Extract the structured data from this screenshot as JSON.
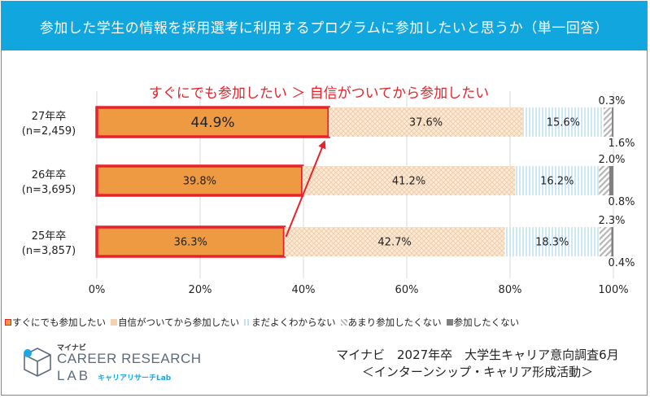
{
  "title": "参加した学生の情報を採用選考に利用するプログラムに参加したいと思うか（単一回答）",
  "annotation": "すぐにでも参加したい ＞ 自信がついてから参加したい",
  "colors": {
    "title_bg": "#12a6df",
    "accent_red": "#e8222a",
    "series": [
      "#ee9a43",
      "#f7dfc7",
      "#cfe9f6",
      "#d9d9d9",
      "#808080"
    ]
  },
  "legend": [
    "すぐにでも参加したい",
    "自信がついてから参加したい",
    "まだよくわからない",
    "あまり参加したくない",
    "参加したくない"
  ],
  "logo": {
    "kana": "マイナビ",
    "line1": "CAREER RESEARCH",
    "line2": "LAB",
    "sub": "キャリアリサーチLab"
  },
  "source": {
    "line1": "マイナビ　2027年卒　大学生キャリア意向調査6月",
    "line2": "＜インターンシップ・キャリア形成活動＞"
  },
  "chart_data": {
    "type": "bar",
    "orientation": "horizontal",
    "stacked": true,
    "categories": [
      [
        "27年卒",
        "(n=2,459)"
      ],
      [
        "26年卒",
        "(n=3,695)"
      ],
      [
        "25年卒",
        "(n=3,857)"
      ]
    ],
    "series": [
      {
        "name": "すぐにでも参加したい",
        "values": [
          44.9,
          39.8,
          36.3
        ]
      },
      {
        "name": "自信がついてから参加したい",
        "values": [
          37.6,
          41.2,
          42.7
        ]
      },
      {
        "name": "まだよくわからない",
        "values": [
          15.6,
          16.2,
          18.3
        ]
      },
      {
        "name": "あまり参加したくない",
        "values": [
          1.6,
          2.0,
          2.3
        ]
      },
      {
        "name": "参加したくない",
        "values": [
          0.3,
          0.8,
          0.4
        ]
      }
    ],
    "value_labels": [
      [
        "44.9%",
        "37.6%",
        "15.6%",
        "1.6%",
        "0.3%"
      ],
      [
        "39.8%",
        "41.2%",
        "16.2%",
        "2.0%",
        "0.8%"
      ],
      [
        "36.3%",
        "42.7%",
        "18.3%",
        "2.3%",
        "0.4%"
      ]
    ],
    "xlim": [
      0,
      100
    ],
    "xticks": [
      "0%",
      "20%",
      "40%",
      "60%",
      "80%",
      "100%"
    ],
    "grid": true,
    "legend_position": "bottom"
  }
}
